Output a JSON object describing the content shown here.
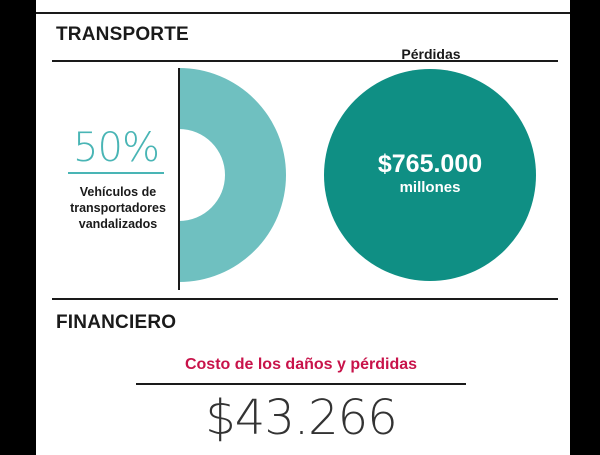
{
  "colors": {
    "teal_light": "#6fc0c0",
    "teal_dark": "#0f8f84",
    "accent_teal": "#49b5b5",
    "magenta": "#c8134a",
    "text": "#1a1a1a",
    "background": "#ffffff"
  },
  "transporte": {
    "title": "TRANSPORTE",
    "percent_label": "50%",
    "caption_lines": [
      "Vehículos de",
      "transportadores",
      "vandalizados"
    ]
  },
  "perdidas": {
    "title": "Pérdidas",
    "amount": "$765.000",
    "unit": "millones"
  },
  "financiero": {
    "title": "FINANCIERO",
    "cost_title": "Costo de los daños y pérdidas",
    "cost_value": "$43.266"
  },
  "chart_data": [
    {
      "type": "pie",
      "subtype": "half-donut",
      "categories": [
        "Vehículos de transportadores vandalizados"
      ],
      "values": [
        50
      ],
      "unit": "%"
    },
    {
      "type": "pie",
      "subtype": "full-circle",
      "title": "Pérdidas",
      "values": [
        765000
      ],
      "value_label": "$765.000",
      "unit": "millones"
    }
  ]
}
